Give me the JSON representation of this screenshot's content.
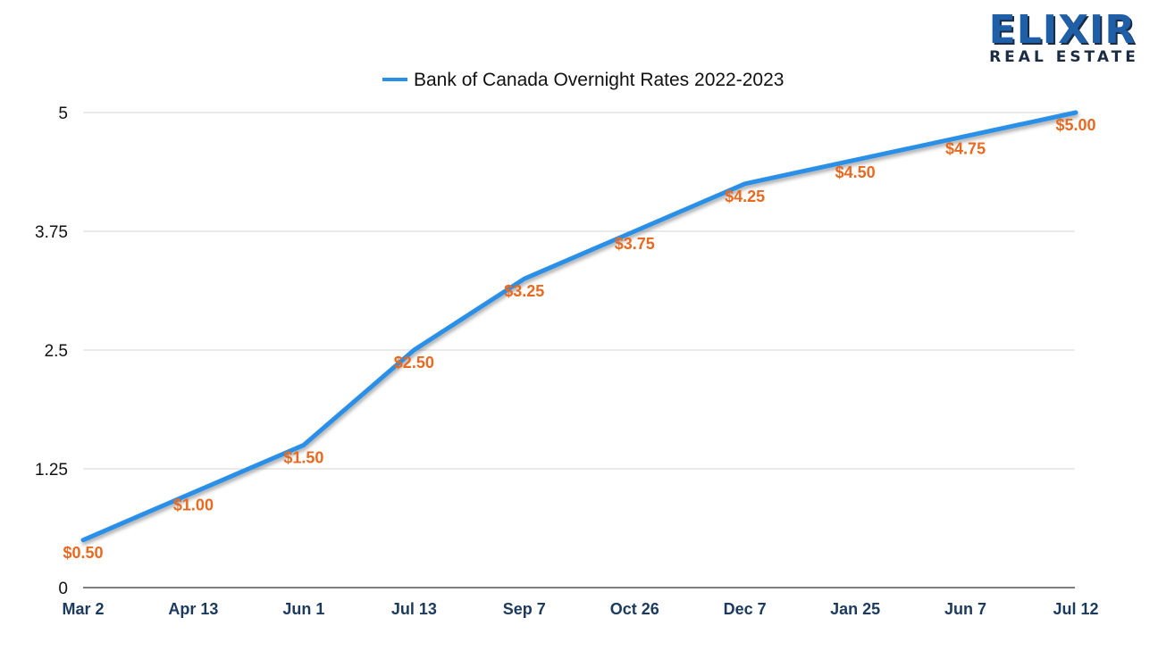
{
  "logo": {
    "wordmark": "ELIXIR",
    "subline": "REAL ESTATE"
  },
  "colors": {
    "line": "#2a8fe6",
    "data_label": "#e8691f",
    "x_tick": "#1b3a5e",
    "grid": "#d6d6d6",
    "brand": "#1f5fa8"
  },
  "chart_data": {
    "type": "line",
    "legend": {
      "placement": "top"
    },
    "grid": true,
    "categories": [
      "Mar 2",
      "Apr 13",
      "Jun 1",
      "Jul 13",
      "Sep 7",
      "Oct 26",
      "Dec 7",
      "Jan 25",
      "Jun 7",
      "Jul 12"
    ],
    "series": [
      {
        "name": "Bank of Canada Overnight Rates 2022-2023",
        "values": [
          0.5,
          1.0,
          1.5,
          2.5,
          3.25,
          3.75,
          4.25,
          4.5,
          4.75,
          5.0
        ],
        "data_labels": [
          "$0.50",
          "$1.00",
          "$1.50",
          "$2.50",
          "$3.25",
          "$3.75",
          "$4.25",
          "$4.50",
          "$4.75",
          "$5.00"
        ]
      }
    ],
    "yticks": [
      "0",
      "1.25",
      "2.5",
      "3.75",
      "5"
    ],
    "ytick_values": [
      0,
      1.25,
      2.5,
      3.75,
      5
    ],
    "ylim": [
      0,
      5
    ]
  }
}
